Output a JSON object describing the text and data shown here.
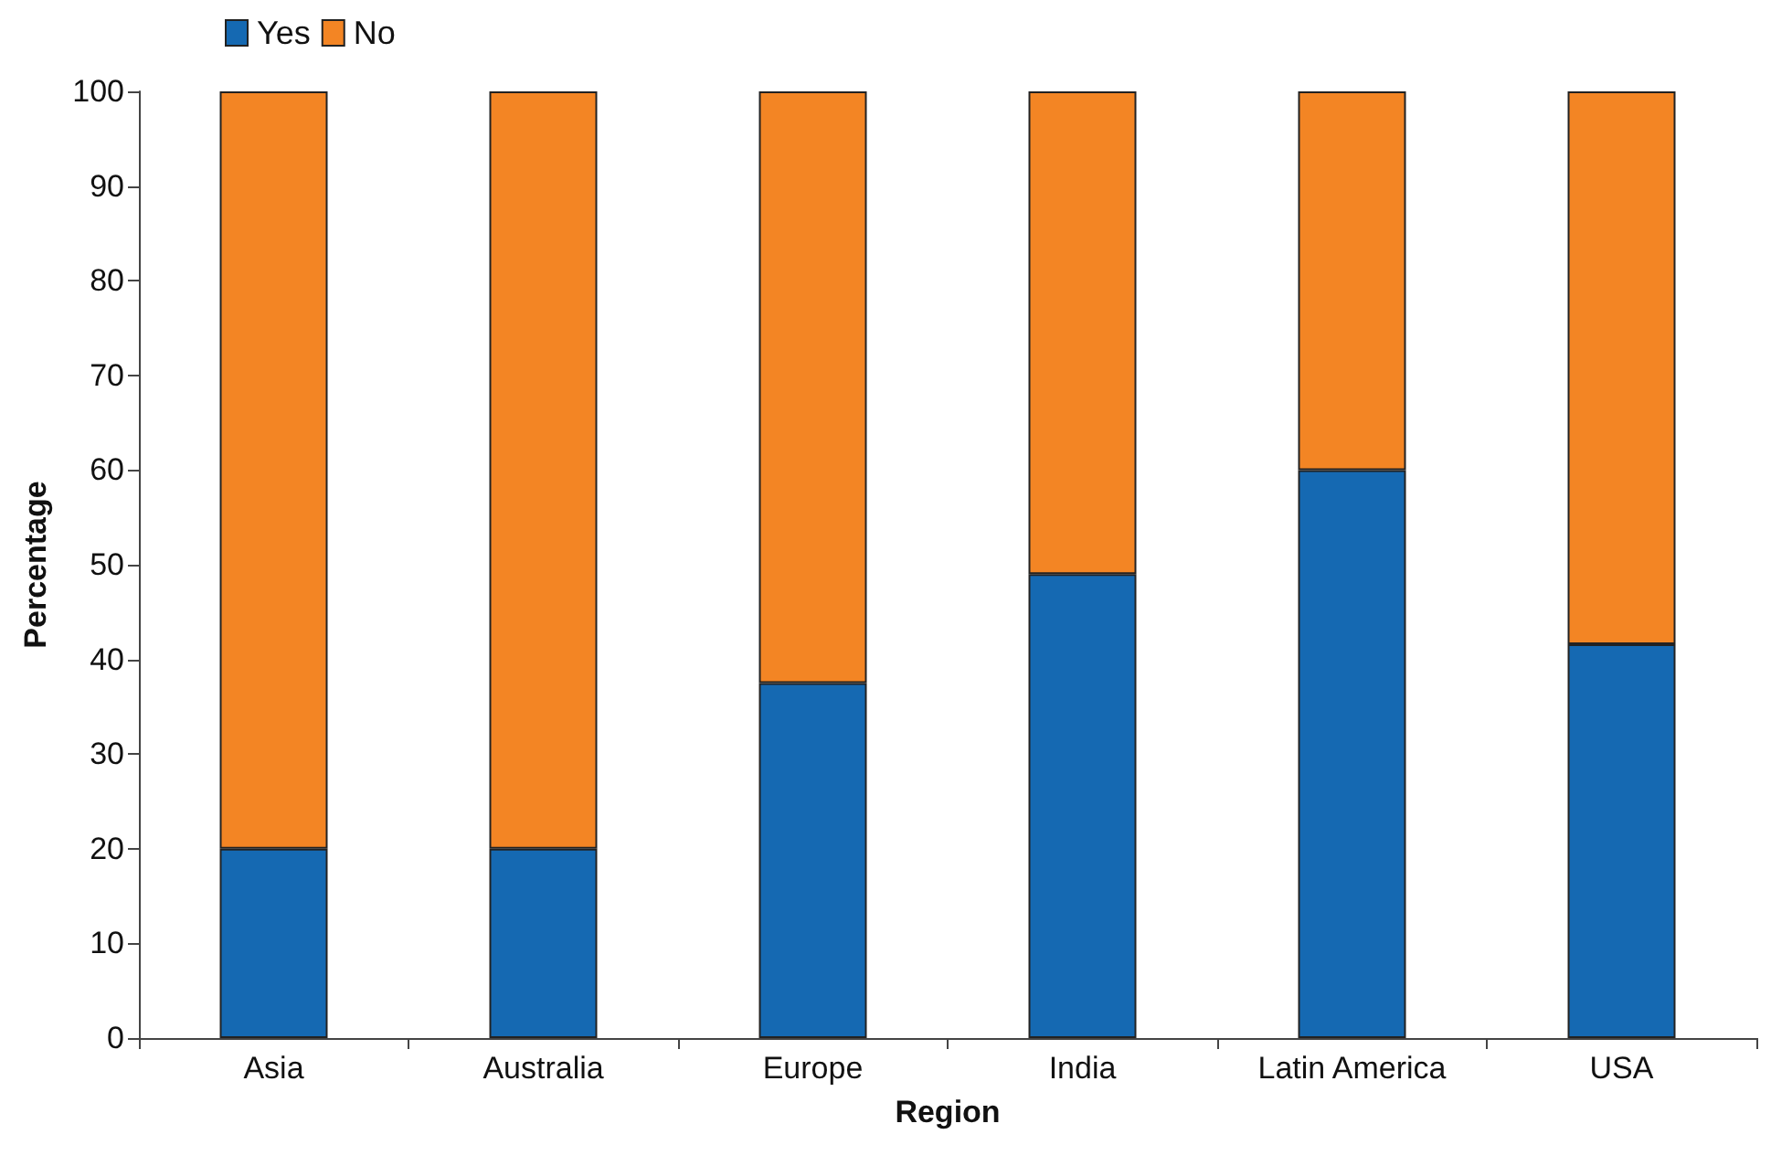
{
  "chart_data": {
    "type": "bar",
    "stacked": true,
    "xlabel": "Region",
    "ylabel": "Percentage",
    "categories": [
      "Asia",
      "Australia",
      "Europe",
      "India",
      "Latin America",
      "USA"
    ],
    "series": [
      {
        "name": "Yes",
        "color": "#1569b2",
        "values": [
          20,
          20,
          37.5,
          49,
          60,
          41.6
        ]
      },
      {
        "name": "No",
        "color": "#f38524",
        "values": [
          80,
          80,
          62.5,
          51,
          40,
          58.4
        ]
      }
    ],
    "ylim": [
      0,
      100
    ],
    "yticks": [
      0,
      10,
      20,
      30,
      40,
      50,
      60,
      70,
      80,
      90,
      100
    ],
    "grid": false,
    "legend": "top left"
  }
}
